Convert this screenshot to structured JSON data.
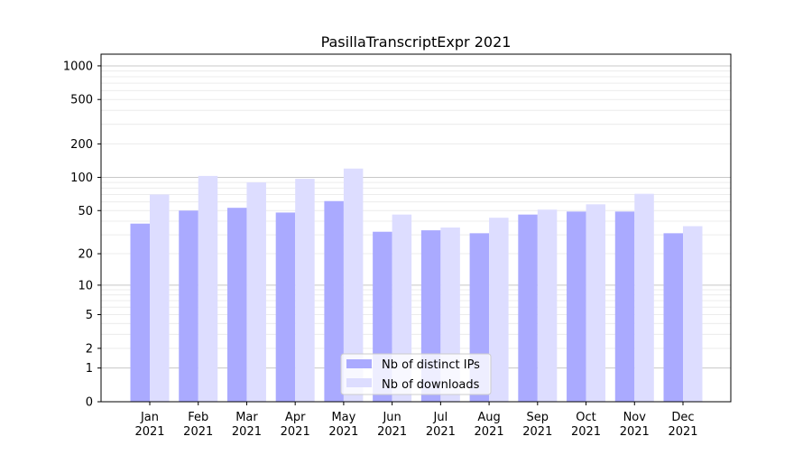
{
  "chart_data": {
    "type": "bar",
    "title": "PasillaTranscriptExpr 2021",
    "xlabel": "",
    "ylabel": "",
    "y_scale": "log10(y+1)",
    "ylim": [
      0,
      1200
    ],
    "yticks": [
      0,
      1,
      2,
      5,
      10,
      20,
      50,
      100,
      200,
      500,
      1000
    ],
    "grid": true,
    "legend_position": "bottom-center",
    "categories": [
      "Jan\n2021",
      "Feb\n2021",
      "Mar\n2021",
      "Apr\n2021",
      "May\n2021",
      "Jun\n2021",
      "Jul\n2021",
      "Aug\n2021",
      "Sep\n2021",
      "Oct\n2021",
      "Nov\n2021",
      "Dec\n2021"
    ],
    "series": [
      {
        "name": "Nb of distinct IPs",
        "color": "#aaaaff",
        "values": [
          38,
          50,
          53,
          48,
          61,
          32,
          33,
          31,
          46,
          49,
          49,
          31
        ]
      },
      {
        "name": "Nb of downloads",
        "color": "#ddddff",
        "values": [
          70,
          103,
          90,
          97,
          120,
          46,
          35,
          43,
          51,
          57,
          71,
          36
        ]
      }
    ]
  }
}
